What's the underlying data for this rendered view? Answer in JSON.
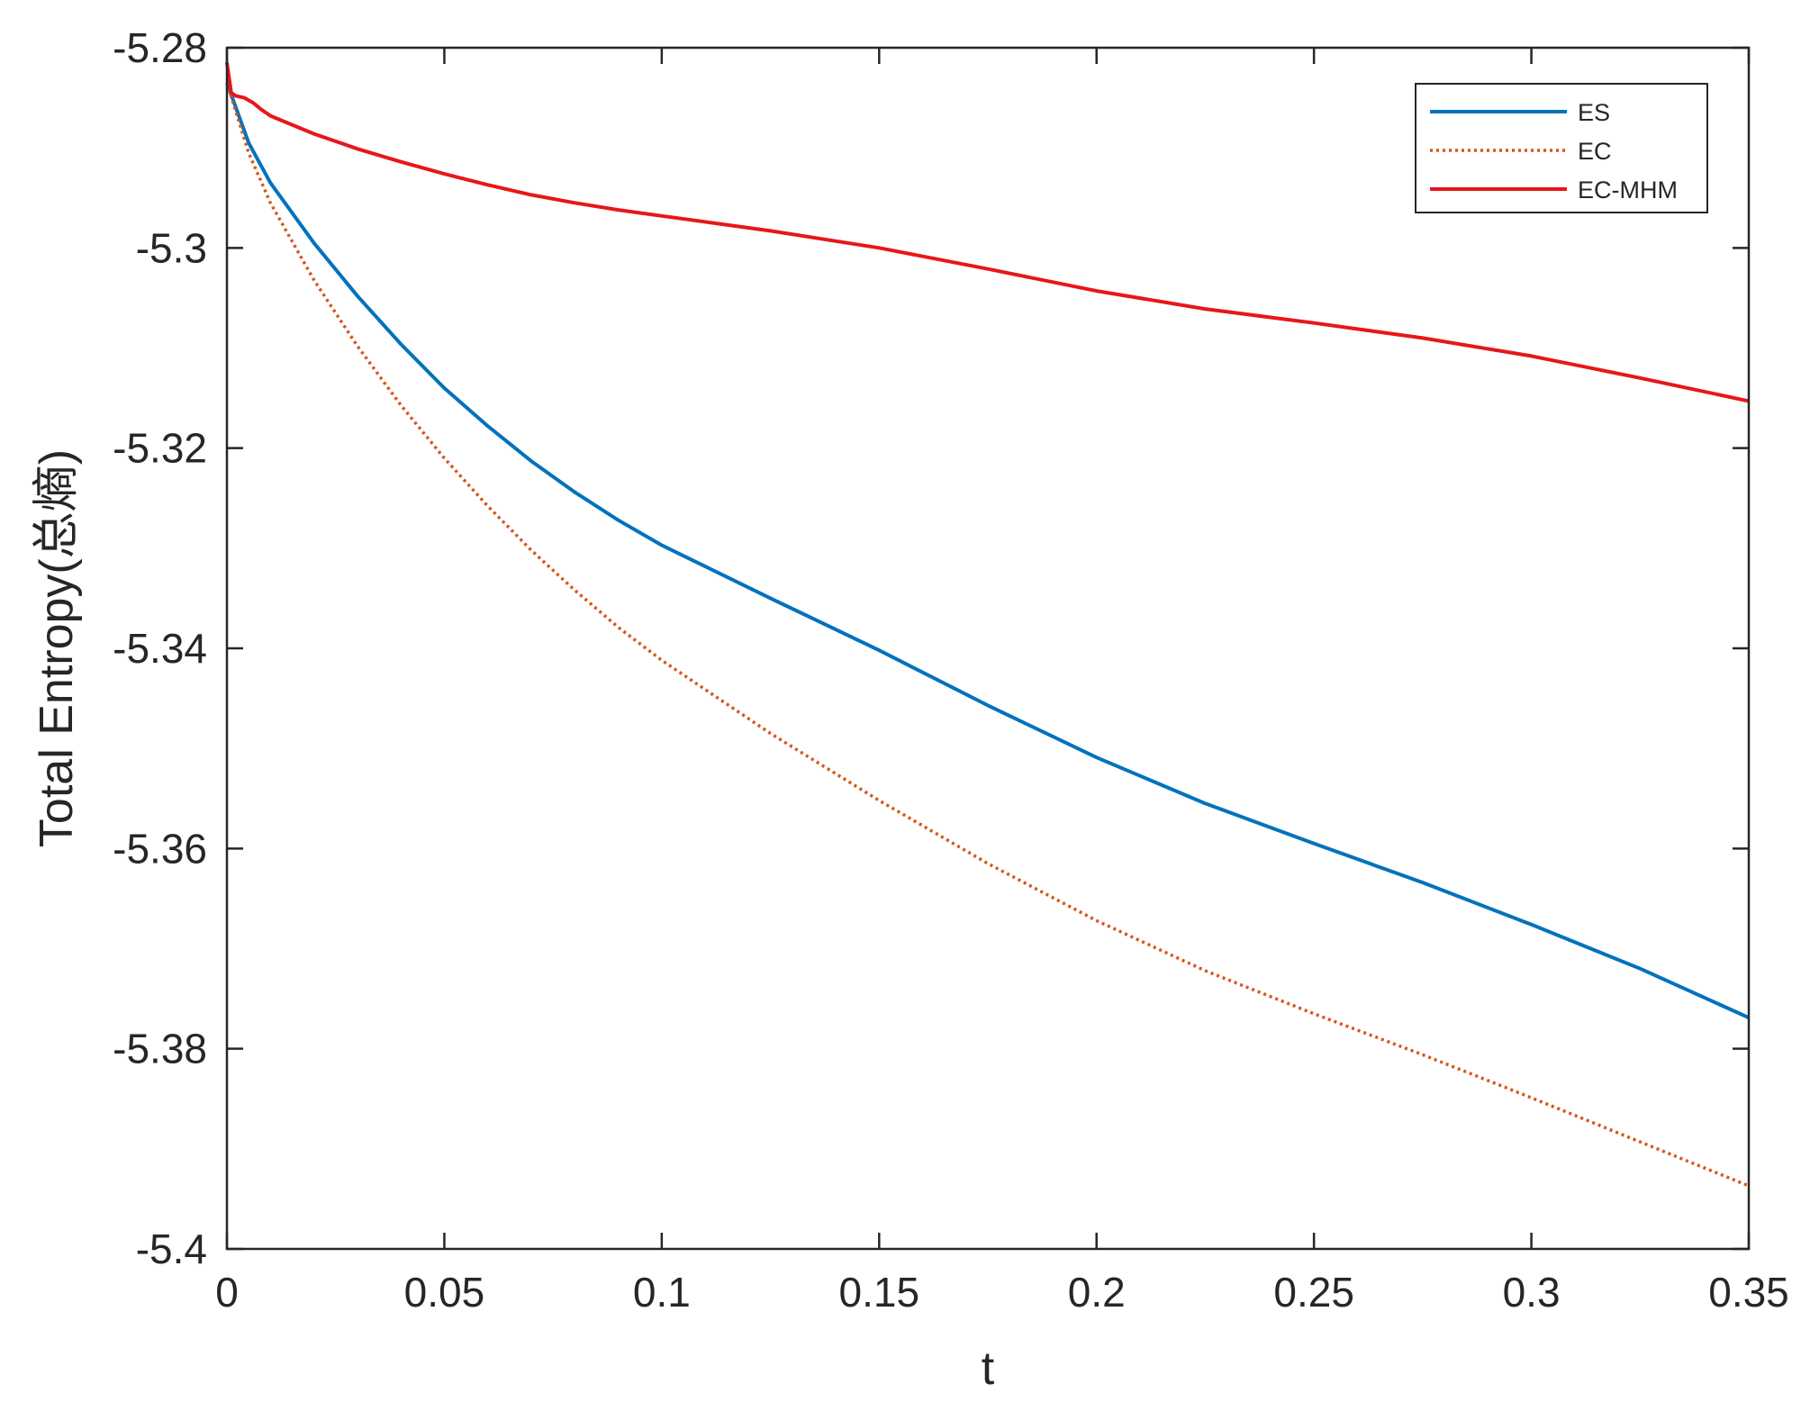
{
  "chart_data": {
    "type": "line",
    "title": "",
    "xlabel": "t",
    "ylabel": "Total Entropy(总熵)",
    "xlim": [
      0,
      0.35
    ],
    "ylim": [
      -5.4,
      -5.28
    ],
    "xticks": [
      0,
      0.05,
      0.1,
      0.15,
      0.2,
      0.25,
      0.3,
      0.35
    ],
    "xtick_labels": [
      "0",
      "0.05",
      "0.1",
      "0.15",
      "0.2",
      "0.25",
      "0.3",
      "0.35"
    ],
    "yticks": [
      -5.4,
      -5.38,
      -5.36,
      -5.34,
      -5.32,
      -5.3,
      -5.28
    ],
    "ytick_labels": [
      "-5.4",
      "-5.38",
      "-5.36",
      "-5.34",
      "-5.32",
      "-5.3",
      "-5.28"
    ],
    "grid": false,
    "legend_position": "top-right",
    "series": [
      {
        "name": "ES",
        "color": "#0072BD",
        "style": "solid",
        "x": [
          0,
          0.005,
          0.01,
          0.02,
          0.03,
          0.04,
          0.05,
          0.06,
          0.07,
          0.08,
          0.09,
          0.1,
          0.125,
          0.15,
          0.175,
          0.2,
          0.225,
          0.25,
          0.275,
          0.3,
          0.325,
          0.35
        ],
        "y": [
          -5.2835,
          -5.2895,
          -5.2935,
          -5.2995,
          -5.3048,
          -5.3096,
          -5.314,
          -5.3178,
          -5.3213,
          -5.3244,
          -5.3272,
          -5.3297,
          -5.335,
          -5.3402,
          -5.3457,
          -5.3509,
          -5.3555,
          -5.3595,
          -5.3634,
          -5.3676,
          -5.372,
          -5.3769
        ]
      },
      {
        "name": "EC",
        "color": "#D95319",
        "style": "dotted",
        "x": [
          0,
          0.005,
          0.01,
          0.02,
          0.03,
          0.04,
          0.05,
          0.06,
          0.07,
          0.08,
          0.09,
          0.1,
          0.125,
          0.15,
          0.175,
          0.2,
          0.225,
          0.25,
          0.275,
          0.3,
          0.325,
          0.35
        ],
        "y": [
          -5.2835,
          -5.2905,
          -5.2955,
          -5.3032,
          -5.3098,
          -5.3157,
          -5.321,
          -5.3258,
          -5.3302,
          -5.3342,
          -5.3379,
          -5.3412,
          -5.3485,
          -5.3552,
          -5.3615,
          -5.3672,
          -5.3722,
          -5.3765,
          -5.3806,
          -5.3849,
          -5.3893,
          -5.3937
        ]
      },
      {
        "name": "EC-MHM",
        "color": "#E8161A",
        "style": "solid",
        "x": [
          0,
          0.001,
          0.002,
          0.004,
          0.006,
          0.008,
          0.01,
          0.015,
          0.02,
          0.03,
          0.04,
          0.05,
          0.06,
          0.07,
          0.08,
          0.09,
          0.1,
          0.125,
          0.15,
          0.175,
          0.2,
          0.225,
          0.25,
          0.275,
          0.3,
          0.325,
          0.35
        ],
        "y": [
          -5.2815,
          -5.2845,
          -5.2848,
          -5.285,
          -5.2855,
          -5.2862,
          -5.2868,
          -5.2877,
          -5.2886,
          -5.2901,
          -5.2914,
          -5.2926,
          -5.2937,
          -5.2947,
          -5.2955,
          -5.2962,
          -5.2968,
          -5.2983,
          -5.3,
          -5.3021,
          -5.3043,
          -5.3061,
          -5.3075,
          -5.309,
          -5.3108,
          -5.313,
          -5.3153
        ]
      }
    ]
  }
}
